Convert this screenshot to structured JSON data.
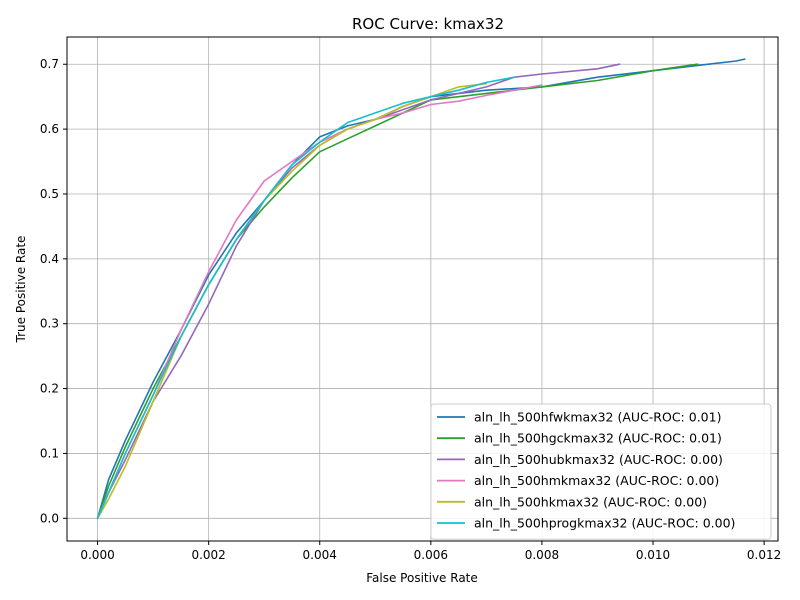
{
  "chart_data": {
    "type": "line",
    "title": "ROC Curve: kmax32",
    "xlabel": "False Positive Rate",
    "ylabel": "True Positive Rate",
    "xlim": [
      -0.00055,
      0.01225
    ],
    "ylim": [
      -0.035,
      0.742
    ],
    "xticks": [
      0.0,
      0.002,
      0.004,
      0.006,
      0.008,
      0.01,
      0.012
    ],
    "xtick_labels": [
      "0.000",
      "0.002",
      "0.004",
      "0.006",
      "0.008",
      "0.010",
      "0.012"
    ],
    "yticks": [
      0.0,
      0.1,
      0.2,
      0.3,
      0.4,
      0.5,
      0.6,
      0.7
    ],
    "ytick_labels": [
      "0.0",
      "0.1",
      "0.2",
      "0.3",
      "0.4",
      "0.5",
      "0.6",
      "0.7"
    ],
    "grid": true,
    "legend_position": "lower-right",
    "series": [
      {
        "name": "aln_lh_500hfwkmax32 (AUC-ROC: 0.01)",
        "color": "#1f77b4",
        "x": [
          0,
          0.0002,
          0.0005,
          0.001,
          0.0015,
          0.002,
          0.0025,
          0.003,
          0.0035,
          0.004,
          0.0045,
          0.005,
          0.0055,
          0.006,
          0.007,
          0.008,
          0.009,
          0.01,
          0.011,
          0.0115,
          0.01165
        ],
        "y": [
          0,
          0.06,
          0.12,
          0.21,
          0.29,
          0.375,
          0.44,
          0.49,
          0.545,
          0.588,
          0.605,
          0.615,
          0.635,
          0.65,
          0.66,
          0.665,
          0.68,
          0.69,
          0.7,
          0.705,
          0.708
        ]
      },
      {
        "name": "aln_lh_500hgckmax32 (AUC-ROC: 0.01)",
        "color": "#2ca02c",
        "x": [
          0,
          0.0002,
          0.0005,
          0.001,
          0.0015,
          0.002,
          0.0025,
          0.003,
          0.0035,
          0.004,
          0.0045,
          0.005,
          0.0055,
          0.006,
          0.007,
          0.008,
          0.009,
          0.01,
          0.0108
        ],
        "y": [
          0,
          0.05,
          0.11,
          0.2,
          0.28,
          0.36,
          0.43,
          0.48,
          0.525,
          0.565,
          0.585,
          0.605,
          0.625,
          0.645,
          0.655,
          0.665,
          0.675,
          0.69,
          0.7
        ]
      },
      {
        "name": "aln_lh_500hubkmax32 (AUC-ROC: 0.00)",
        "color": "#9467bd",
        "x": [
          0,
          0.0002,
          0.0005,
          0.001,
          0.0015,
          0.002,
          0.0025,
          0.003,
          0.0035,
          0.004,
          0.0045,
          0.005,
          0.0055,
          0.006,
          0.007,
          0.0075,
          0.008,
          0.009,
          0.0094
        ],
        "y": [
          0,
          0.04,
          0.09,
          0.18,
          0.25,
          0.33,
          0.42,
          0.49,
          0.54,
          0.575,
          0.6,
          0.615,
          0.63,
          0.645,
          0.665,
          0.68,
          0.685,
          0.693,
          0.7
        ]
      },
      {
        "name": "aln_lh_500hmkmax32 (AUC-ROC: 0.00)",
        "color": "#e377c2",
        "x": [
          0,
          0.0002,
          0.0005,
          0.001,
          0.0015,
          0.002,
          0.0025,
          0.003,
          0.0035,
          0.004,
          0.0045,
          0.005,
          0.0055,
          0.006,
          0.0065,
          0.007,
          0.008
        ],
        "y": [
          0,
          0.04,
          0.1,
          0.19,
          0.29,
          0.38,
          0.46,
          0.52,
          0.55,
          0.58,
          0.6,
          0.615,
          0.625,
          0.638,
          0.643,
          0.652,
          0.668
        ]
      },
      {
        "name": "aln_lh_500hkmax32 (AUC-ROC: 0.00)",
        "color": "#bcbd22",
        "x": [
          0,
          0.0002,
          0.0005,
          0.001,
          0.0015,
          0.002,
          0.0025,
          0.003,
          0.0035,
          0.004,
          0.0045,
          0.005,
          0.0055,
          0.006,
          0.0065,
          0.007
        ],
        "y": [
          0,
          0.03,
          0.08,
          0.18,
          0.28,
          0.36,
          0.43,
          0.49,
          0.535,
          0.575,
          0.6,
          0.615,
          0.635,
          0.65,
          0.665,
          0.67
        ]
      },
      {
        "name": "aln_lh_500hprogkmax32 (AUC-ROC: 0.00)",
        "color": "#17becf",
        "x": [
          0,
          0.0002,
          0.0005,
          0.001,
          0.0015,
          0.002,
          0.0025,
          0.003,
          0.0035,
          0.004,
          0.0045,
          0.005,
          0.0055,
          0.006,
          0.0065,
          0.007,
          0.0075
        ],
        "y": [
          0,
          0.04,
          0.1,
          0.19,
          0.28,
          0.36,
          0.43,
          0.49,
          0.545,
          0.58,
          0.61,
          0.625,
          0.64,
          0.65,
          0.66,
          0.672,
          0.68
        ]
      }
    ]
  }
}
